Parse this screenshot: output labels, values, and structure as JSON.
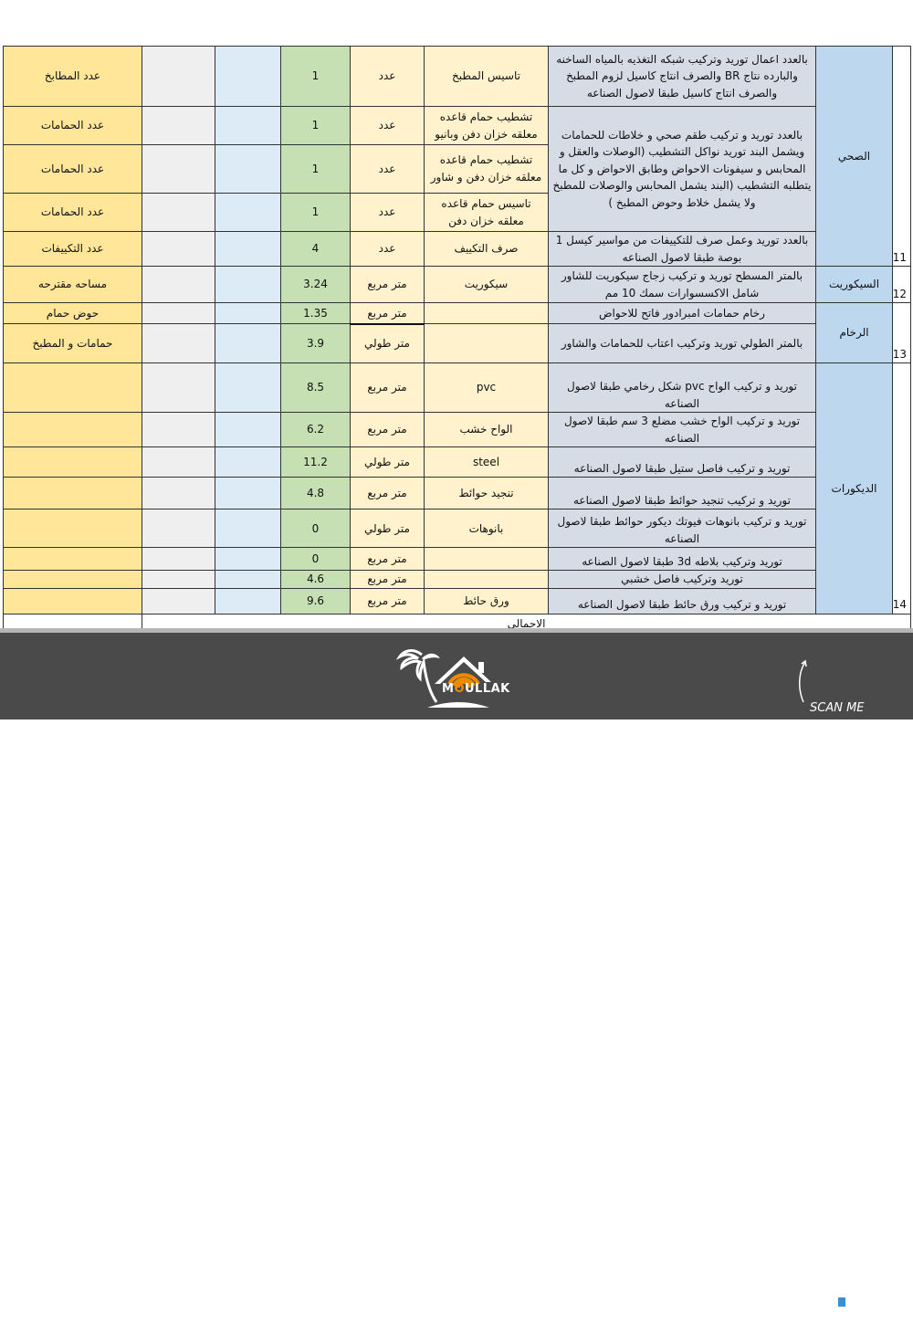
{
  "colors": {
    "notes": "#ffe699",
    "quantity": "#c6e0b4",
    "description": "#d6dce5",
    "category": "#bdd7ee",
    "item": "#fff2cc",
    "footer": "#4a4a4a",
    "brand_accent": "#f08a00"
  },
  "sections": [
    {
      "number": "11",
      "category": "الصحي",
      "rows": [
        {
          "desc": "بالعدد اعمال توريد وتركيب شبكه التغذيه بالمياه الساخنه والبارده نتاج BR والصرف انتاج كاسيل  لزوم المطبخ والصرف انتاج كاسيل طبقا لاصول الصناعه",
          "desc_span": 1,
          "item": "تاسيس المطبخ",
          "unit": "عدد",
          "qty": "1",
          "note": "عدد المطابخ"
        },
        {
          "desc": "بالعدد توريد و  تركيب طقم صحي و خلاطات للحمامات ويشمل البند توريد نواكل التشطيب (الوصلات والعقل و المحابس و سيفونات الاحواض وطابق الاحواض و كل ما يتطلبه التشطيب (البند يشمل المحابس والوصلات للمطبخ  ولا يشمل خلاط وحوض المطبخ )",
          "desc_span": 3,
          "item": "تشطيب حمام قاعده معلقه خزان دفن وبانيو",
          "unit": "عدد",
          "qty": "1",
          "note": "عدد الحمامات"
        },
        {
          "item": "تشطيب حمام قاعده معلقه خزان دفن و شاور",
          "unit": "عدد",
          "qty": "1",
          "note": "عدد الحمامات"
        },
        {
          "item": "تاسيس حمام قاعده معلقه خزان دفن",
          "unit": "عدد",
          "qty": "1",
          "note": "عدد الحمامات"
        },
        {
          "desc": "بالعدد توريد وعمل صرف للتكييفات من مواسير كيسل 1 بوصة طبقا لاصول الصناعه",
          "desc_span": 1,
          "item": "صرف التكييف",
          "unit": "عدد",
          "qty": "4",
          "note": "عدد التكييفات"
        }
      ]
    },
    {
      "number": "12",
      "category": "السيكوريت",
      "rows": [
        {
          "desc": "بالمتر المسطح توريد و تركيب زجاج سيكوريت    للشاور شامل الاكسسوارات سمك 10 مم",
          "desc_span": 1,
          "item": "سيكوريت",
          "unit": "متر مربع",
          "qty": "3.24",
          "note": "مساحه مقترحه"
        }
      ]
    },
    {
      "number": "13",
      "category": "الرخام",
      "rows": [
        {
          "desc": "رخام حمامات امبرادور فاتح للاحواض",
          "desc_span": 1,
          "item": "",
          "unit": "متر مربع",
          "qty": "1.35",
          "note": "حوض حمام"
        },
        {
          "desc": "بالمتر الطولي توريد وتركيب اعتاب للحمامات والشاور",
          "desc_span": 1,
          "item": "",
          "unit": "متر طولي",
          "qty": "3.9",
          "note": "حمامات و المطبخ"
        }
      ]
    },
    {
      "number": "14",
      "category": "الديكورات",
      "rows": [
        {
          "desc": "توريد و تركيب الواح pvc شكل رخامي طبقا لاصول الصناعه",
          "desc_span": 1,
          "item": "pvc",
          "unit": "متر مربع",
          "qty": "8.5",
          "note": ""
        },
        {
          "desc": "توريد و تركيب الواح خشب مضلع 3 سم طبقا لاصول الصناعه",
          "desc_span": 1,
          "item": "الواح خشب",
          "unit": "متر مربع",
          "qty": "6.2",
          "note": ""
        },
        {
          "desc": "توريد و تركيب فاصل ستيل طبقا لاصول الصناعه",
          "desc_span": 1,
          "item": "steel",
          "unit": "متر طولي",
          "qty": "11.2",
          "note": ""
        },
        {
          "desc": "توريد و تركيب تنجيد حوائط طبقا لاصول الصناعه",
          "desc_span": 1,
          "item": "تنجيد حوائط",
          "unit": "متر مربع",
          "qty": "4.8",
          "note": ""
        },
        {
          "desc": "توريد و تركيب بانوهات فيوتك ديكور حوائط طبقا لاصول الصناعه",
          "desc_span": 1,
          "item": "بانوهات",
          "unit": "متر طولي",
          "qty": "0",
          "note": ""
        },
        {
          "desc": "توريد وتركيب بلاطه 3d طبقا لاصول الصناعه",
          "desc_span": 1,
          "item": "",
          "unit": "متر مربع",
          "qty": "0",
          "note": ""
        },
        {
          "desc": "توريد وتركيب فاصل خشبي",
          "desc_span": 1,
          "item": "",
          "unit": "متر مربع",
          "qty": "4.6",
          "note": ""
        },
        {
          "desc": "توريد و تركيب ورق حائط  طبقا لاصول الصناعه",
          "desc_span": 1,
          "item": "ورق حائط",
          "unit": "متر مربع",
          "qty": "9.6",
          "note": ""
        }
      ]
    }
  ],
  "total_label": "الاجمالي",
  "footer": {
    "brand": "MOULLAK",
    "brand_prefix": "M",
    "brand_accent": "O",
    "brand_suffix": "ULLAK",
    "scan_label": "SCAN ME",
    "logo_icon": "palm-house-wifi-logo",
    "qr_icon": "qr-code"
  }
}
